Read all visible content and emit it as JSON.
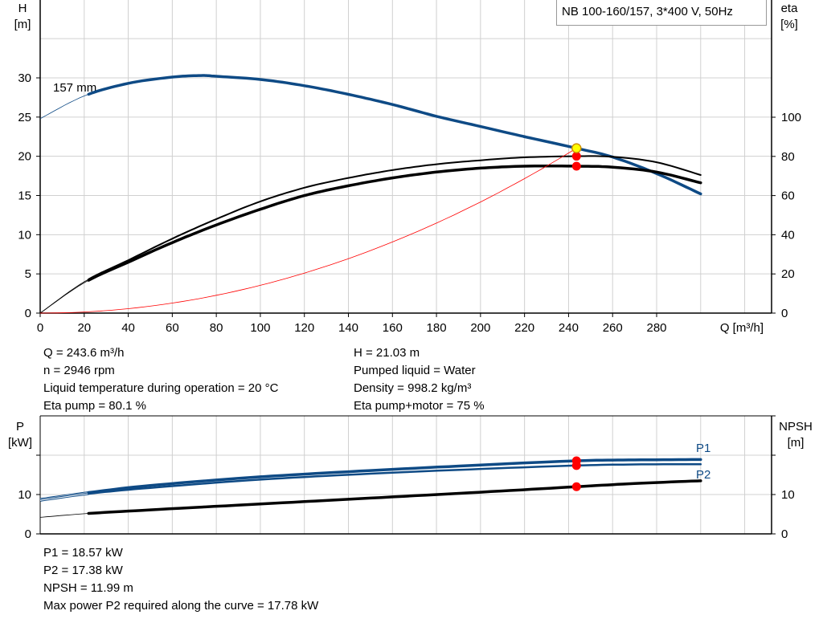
{
  "title": "NB 100-160/157, 3*400 V, 50Hz",
  "colors": {
    "blue": "#0e4a85",
    "black": "#000000",
    "red": "#ff0000",
    "yellow": "#ffff00",
    "grid": "#d0d0d0"
  },
  "info_top_left": [
    "Q = 243.6 m³/h",
    "n = 2946 rpm",
    "Liquid temperature during operation = 20 °C",
    "Eta pump = 80.1 %"
  ],
  "info_top_right": [
    "H = 21.03 m",
    "Pumped liquid = Water",
    "Density = 998.2 kg/m³",
    "Eta pump+motor = 75 %"
  ],
  "info_bottom": [
    "P1 = 18.57 kW",
    "P2 = 17.38 kW",
    "NPSH = 11.99 m",
    "Max power P2 required along the curve = 17.78 kW"
  ],
  "chart_data": [
    {
      "type": "line",
      "xlabel": "Q [m³/h]",
      "ylabel": "H\n[m]",
      "ylabel_right": "eta\n[%]",
      "xlim": [
        0,
        332
      ],
      "ylim": [
        0,
        40
      ],
      "ylim_right": [
        0,
        164
      ],
      "xticks": [
        0,
        20,
        40,
        60,
        80,
        100,
        120,
        140,
        160,
        180,
        200,
        220,
        240,
        260,
        280
      ],
      "yticks": [
        0,
        5,
        10,
        15,
        20,
        25,
        30
      ],
      "yticks_right": [
        0,
        20,
        40,
        60,
        80,
        100
      ],
      "grid": true,
      "annotation": "157 mm",
      "series": [
        {
          "key": "H",
          "axis": "left",
          "color": "#0e4a85",
          "x": [
            0,
            20,
            40,
            60,
            73,
            80,
            100,
            120,
            140,
            160,
            180,
            200,
            220,
            243.6,
            260,
            280,
            300
          ],
          "y": [
            24.8,
            27.7,
            29.3,
            30.1,
            30.3,
            30.2,
            29.8,
            29.0,
            27.9,
            26.6,
            25.1,
            23.8,
            22.5,
            21.03,
            19.9,
            17.8,
            15.2
          ]
        },
        {
          "key": "eta_pump",
          "axis": "right",
          "color": "#000000",
          "x": [
            0,
            20,
            40,
            60,
            80,
            100,
            120,
            140,
            160,
            180,
            200,
            220,
            243.6,
            260,
            280,
            300
          ],
          "y": [
            0,
            16,
            27,
            38,
            48,
            57,
            64,
            69,
            73,
            76,
            78,
            79.5,
            80.1,
            79.8,
            77,
            70.5
          ]
        },
        {
          "key": "eta_pump_motor",
          "axis": "right",
          "color": "#000000",
          "x": [
            0,
            20,
            40,
            60,
            80,
            100,
            120,
            140,
            160,
            180,
            200,
            220,
            243.6,
            260,
            280,
            300
          ],
          "y": [
            0,
            15.5,
            26,
            36,
            45,
            53,
            60,
            65,
            69,
            72,
            74,
            75,
            75,
            74.5,
            72,
            66.5
          ]
        },
        {
          "key": "system",
          "axis": "left",
          "color": "#ff0000",
          "x": [
            0,
            20,
            40,
            60,
            80,
            100,
            120,
            140,
            160,
            180,
            200,
            220,
            243.6
          ],
          "y": [
            0,
            0.14,
            0.57,
            1.28,
            2.27,
            3.54,
            5.1,
            6.94,
            9.07,
            11.47,
            14.17,
            17.14,
            21.03
          ]
        }
      ],
      "operating_point": {
        "Q": 243.6,
        "H": 21.03,
        "eta_pump": 80.1,
        "eta_pump_motor": 75
      }
    },
    {
      "type": "line",
      "xlabel": "",
      "ylabel": "P\n[kW]",
      "ylabel_right": "NPSH\n[m]",
      "xlim": [
        0,
        332
      ],
      "ylim": [
        0,
        30
      ],
      "yticks": [
        0,
        10
      ],
      "yticks_right": [
        0,
        10
      ],
      "grid": true,
      "series": [
        {
          "name": "P1",
          "color": "#0e4a85",
          "x": [
            0,
            22,
            50,
            100,
            150,
            200,
            243.6,
            270,
            300
          ],
          "y": [
            8.8,
            10.5,
            12.3,
            14.5,
            16.1,
            17.5,
            18.57,
            18.8,
            18.9
          ]
        },
        {
          "key": "P2",
          "color": "#0e4a85",
          "x": [
            0,
            22,
            50,
            100,
            150,
            200,
            243.6,
            270,
            300
          ],
          "y": [
            8.5,
            10.2,
            11.7,
            13.8,
            15.3,
            16.5,
            17.38,
            17.65,
            17.7
          ]
        },
        {
          "name": "P2",
          "key": "NPSH",
          "color": "#000000",
          "x": [
            0,
            22,
            50,
            100,
            150,
            200,
            243.6,
            270,
            300
          ],
          "y": [
            4.2,
            5.2,
            6.1,
            7.6,
            9.1,
            10.6,
            11.99,
            12.8,
            13.5
          ]
        }
      ],
      "operating_point": {
        "Q": 243.6,
        "P1": 18.57,
        "P2": 17.38,
        "NPSH": 11.99
      }
    }
  ]
}
